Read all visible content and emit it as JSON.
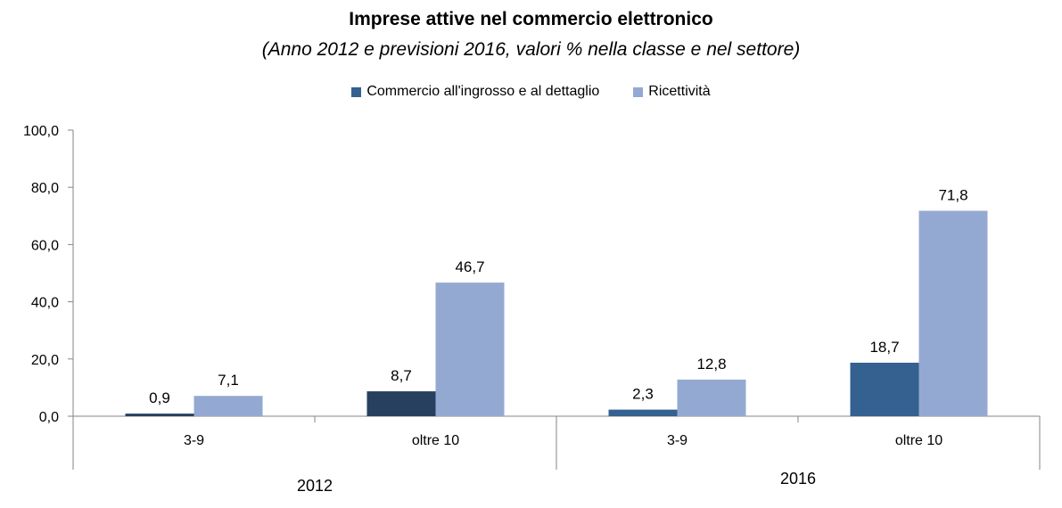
{
  "chart_data": {
    "type": "bar",
    "title": "Imprese attive nel commercio elettronico",
    "subtitle": "(Anno 2012 e previsioni 2016, valori % nella classe e nel settore)",
    "categories": [
      "3-9",
      "oltre 10",
      "3-9",
      "oltre 10"
    ],
    "groups": [
      {
        "label": "2012",
        "categories": [
          "3-9",
          "oltre 10"
        ]
      },
      {
        "label": "2016",
        "categories": [
          "3-9",
          "oltre 10"
        ]
      }
    ],
    "series": [
      {
        "name": "Commercio all'ingrosso e al dettaglio",
        "values": [
          0.9,
          8.7,
          2.3,
          18.7
        ],
        "labels": [
          "0,9",
          "8,7",
          "2,3",
          "18,7"
        ],
        "color": "#34618f"
      },
      {
        "name": "Ricettività",
        "values": [
          7.1,
          46.7,
          12.8,
          71.8
        ],
        "labels": [
          "7,1",
          "46,7",
          "12,8",
          "71,8"
        ],
        "color": "#94a9d2"
      }
    ],
    "bar_color_2012_first_series": "#27405f",
    "yticks": [
      "0,0",
      "20,0",
      "40,0",
      "60,0",
      "80,0",
      "100,0"
    ],
    "ylim": [
      0,
      100
    ],
    "xlabel": "",
    "ylabel": "",
    "grid": false,
    "legend_position": "top-center"
  }
}
